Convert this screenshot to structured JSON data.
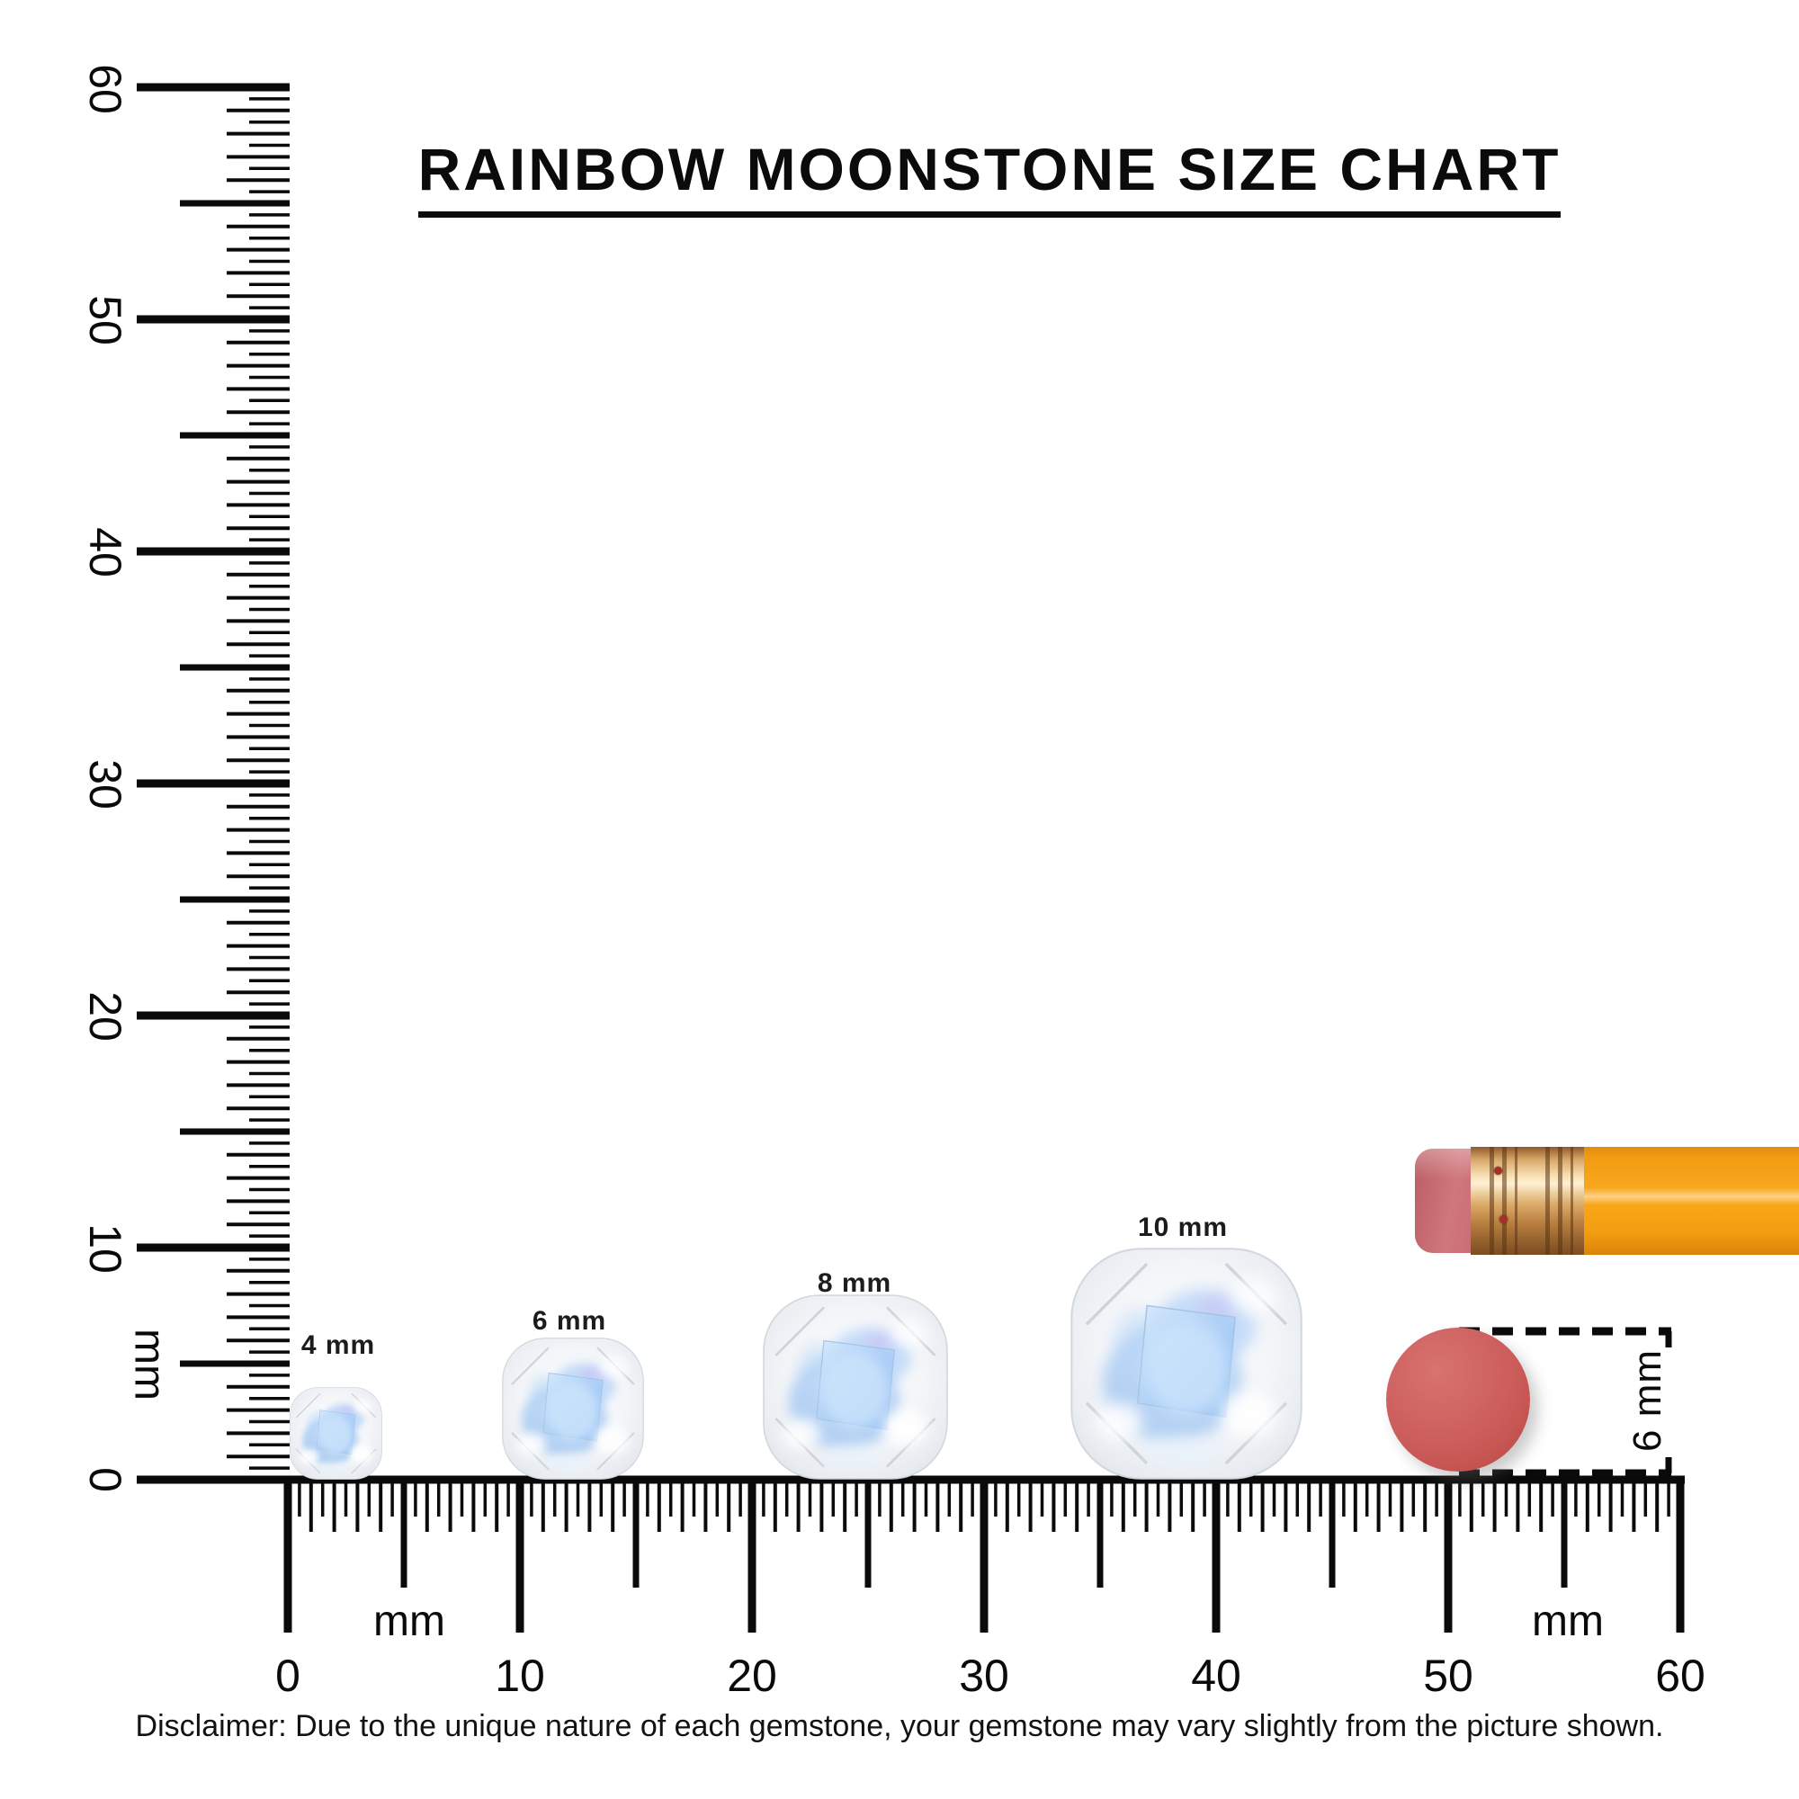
{
  "title": {
    "text": "RAINBOW MOONSTONE SIZE CHART"
  },
  "vertical_ruler": {
    "unit": "mm",
    "labels": [
      "0",
      "10",
      "20",
      "30",
      "40",
      "50",
      "60"
    ]
  },
  "horizontal_ruler": {
    "unit_left": "mm",
    "unit_right": "mm",
    "labels": [
      "0",
      "10",
      "20",
      "30",
      "40",
      "50",
      "60"
    ]
  },
  "gems": [
    {
      "label": "4 mm",
      "size_mm": 4
    },
    {
      "label": "6 mm",
      "size_mm": 6
    },
    {
      "label": "8 mm",
      "size_mm": 8
    },
    {
      "label": "10 mm",
      "size_mm": 10
    }
  ],
  "eraser_dot": {
    "label": "6 mm",
    "diameter_mm": 6,
    "color": "#cb5f5e"
  },
  "pencil": {
    "eraser_color": "#c96d73",
    "ferrule_color": "#c89a62",
    "body_color": "#f7a01a"
  },
  "disclaimer": {
    "text": "Disclaimer: Due to the unique nature of each gemstone, your gemstone may vary slightly from the picture shown."
  },
  "colors": {
    "ink": "#0a0a0a",
    "background": "#ffffff"
  }
}
